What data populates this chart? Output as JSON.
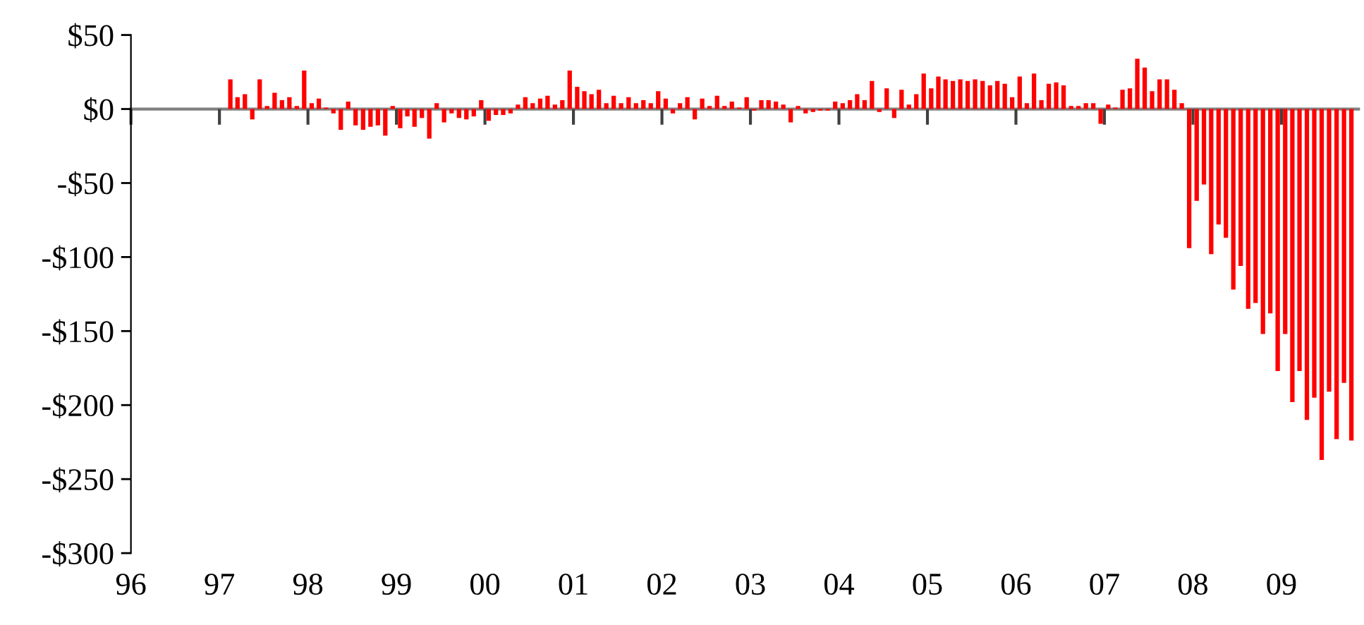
{
  "chart_data": {
    "type": "bar",
    "x": [
      "1997-02",
      "1997-03",
      "1997-04",
      "1997-05",
      "1997-06",
      "1997-07",
      "1997-08",
      "1997-09",
      "1997-10",
      "1997-11",
      "1997-12",
      "1998-01",
      "1998-02",
      "1998-03",
      "1998-04",
      "1998-05",
      "1998-06",
      "1998-07",
      "1998-08",
      "1998-09",
      "1998-10",
      "1998-11",
      "1998-12",
      "1999-01",
      "1999-02",
      "1999-03",
      "1999-04",
      "1999-05",
      "1999-06",
      "1999-07",
      "1999-08",
      "1999-09",
      "1999-10",
      "1999-11",
      "1999-12",
      "2000-01",
      "2000-02",
      "2000-03",
      "2000-04",
      "2000-05",
      "2000-06",
      "2000-07",
      "2000-08",
      "2000-09",
      "2000-10",
      "2000-11",
      "2000-12",
      "2001-01",
      "2001-02",
      "2001-03",
      "2001-04",
      "2001-05",
      "2001-06",
      "2001-07",
      "2001-08",
      "2001-09",
      "2001-10",
      "2001-11",
      "2001-12",
      "2002-01",
      "2002-02",
      "2002-03",
      "2002-04",
      "2002-05",
      "2002-06",
      "2002-07",
      "2002-08",
      "2002-09",
      "2002-10",
      "2002-11",
      "2002-12",
      "2003-01",
      "2003-02",
      "2003-03",
      "2003-04",
      "2003-05",
      "2003-06",
      "2003-07",
      "2003-08",
      "2003-09",
      "2003-10",
      "2003-11",
      "2003-12",
      "2004-01",
      "2004-02",
      "2004-03",
      "2004-04",
      "2004-05",
      "2004-06",
      "2004-07",
      "2004-08",
      "2004-09",
      "2004-10",
      "2004-11",
      "2004-12",
      "2005-01",
      "2005-02",
      "2005-03",
      "2005-04",
      "2005-05",
      "2005-06",
      "2005-07",
      "2005-08",
      "2005-09",
      "2005-10",
      "2005-11",
      "2005-12",
      "2006-01",
      "2006-02",
      "2006-03",
      "2006-04",
      "2006-05",
      "2006-06",
      "2006-07",
      "2006-08",
      "2006-09",
      "2006-10",
      "2006-11",
      "2006-12",
      "2007-01",
      "2007-02",
      "2007-03",
      "2007-04",
      "2007-05",
      "2007-06",
      "2007-07",
      "2007-08",
      "2007-09",
      "2007-10",
      "2007-11",
      "2007-12",
      "2008-01",
      "2008-02",
      "2008-03",
      "2008-04",
      "2008-05",
      "2008-06",
      "2008-07",
      "2008-08",
      "2008-09",
      "2008-10",
      "2008-11",
      "2008-12",
      "2009-01",
      "2009-02",
      "2009-03",
      "2009-04",
      "2009-05",
      "2009-06",
      "2009-07",
      "2009-08",
      "2009-09",
      "2009-10"
    ],
    "series": [
      {
        "color": "#ff0000",
        "values": [
          20,
          8,
          10,
          -7,
          20,
          2,
          11,
          6,
          8,
          2,
          26,
          4,
          7,
          1,
          -3,
          -14,
          5,
          -11,
          -14,
          -12,
          -11,
          -18,
          2,
          -13,
          -5,
          -12,
          -6,
          -20,
          4,
          -9,
          -3,
          -6,
          -7,
          -5,
          6,
          -8,
          -4,
          -4,
          -3,
          3,
          8,
          4,
          7,
          9,
          3,
          6,
          26,
          15,
          12,
          10,
          13,
          4,
          9,
          4,
          8,
          4,
          6,
          4,
          12,
          7,
          -3,
          4,
          8,
          -7,
          7,
          2,
          9,
          2,
          5,
          1,
          8,
          -1,
          6,
          6,
          5,
          3,
          -9,
          2,
          -3,
          -2,
          -1,
          -1,
          5,
          4,
          6,
          10,
          6,
          19,
          -2,
          14,
          -6,
          13,
          3,
          10,
          24,
          14,
          22,
          20,
          19,
          20,
          19,
          20,
          19,
          16,
          19,
          17,
          8,
          22,
          4,
          24,
          6,
          17,
          18,
          16,
          2,
          2,
          4,
          4,
          -10,
          3,
          1,
          13,
          14,
          34,
          28,
          12,
          20,
          20,
          13,
          4,
          -94,
          -62,
          -51,
          -98,
          -78,
          -87,
          -122,
          -106,
          -135,
          -131,
          -152,
          -138,
          -177,
          -152,
          -198,
          -177,
          -210,
          -195,
          -237,
          -191,
          -223,
          -185,
          -224
        ]
      }
    ],
    "xlim": [
      "1996",
      "2009-11-15"
    ],
    "xticks": [
      {
        "value": "1996",
        "label": "96"
      },
      {
        "value": "1997",
        "label": "97"
      },
      {
        "value": "1998",
        "label": "98"
      },
      {
        "value": "1999",
        "label": "99"
      },
      {
        "value": "2000",
        "label": "00"
      },
      {
        "value": "2001",
        "label": "01"
      },
      {
        "value": "2002",
        "label": "02"
      },
      {
        "value": "2003",
        "label": "03"
      },
      {
        "value": "2004",
        "label": "04"
      },
      {
        "value": "2005",
        "label": "05"
      },
      {
        "value": "2006",
        "label": "06"
      },
      {
        "value": "2007",
        "label": "07"
      },
      {
        "value": "2008",
        "label": "08"
      },
      {
        "value": "2009",
        "label": "09"
      }
    ],
    "ylim": [
      -300,
      50
    ],
    "yticks": [
      {
        "value": 50,
        "label": "$50"
      },
      {
        "value": 0,
        "label": "$0"
      },
      {
        "value": -50,
        "label": "-$50"
      },
      {
        "value": -100,
        "label": "-$100"
      },
      {
        "value": -150,
        "label": "-$150"
      },
      {
        "value": -200,
        "label": "-$200"
      },
      {
        "value": -250,
        "label": "-$250"
      },
      {
        "value": -300,
        "label": "-$300"
      }
    ],
    "legend": false
  }
}
